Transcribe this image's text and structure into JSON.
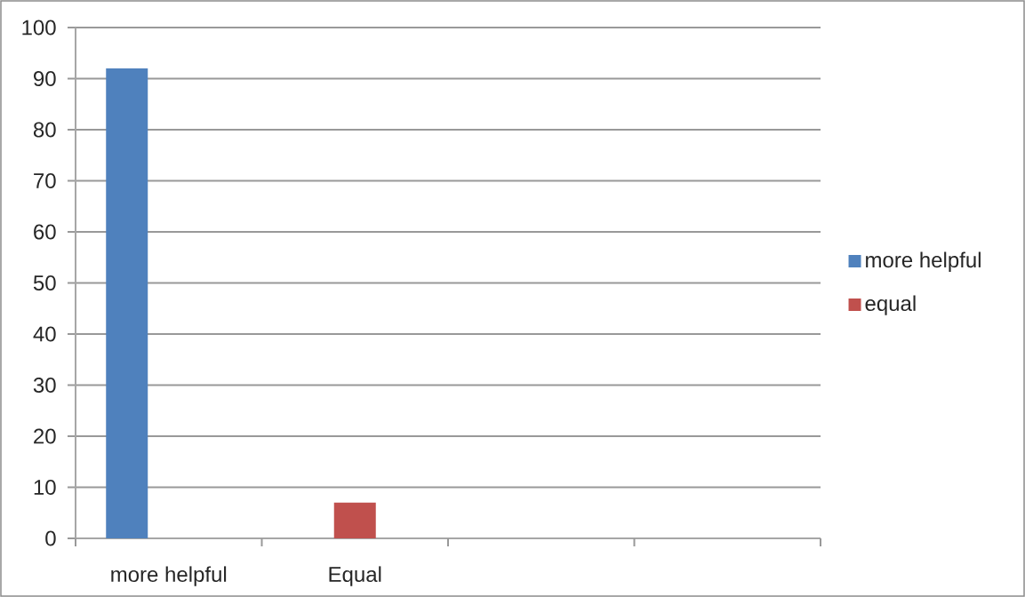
{
  "chart_data": {
    "type": "bar",
    "categories": [
      "more helpful",
      "Equal",
      null,
      null
    ],
    "series": [
      {
        "name": "more helpful",
        "color": "#4f81bd",
        "values": [
          92,
          null,
          null,
          null
        ]
      },
      {
        "name": "equal",
        "color": "#c0504d",
        "values": [
          null,
          7,
          null,
          null
        ]
      }
    ],
    "ylim": [
      0,
      100
    ],
    "yticks": [
      0,
      10,
      20,
      30,
      40,
      50,
      60,
      70,
      80,
      90,
      100
    ],
    "grid": "y",
    "legend": "right"
  }
}
